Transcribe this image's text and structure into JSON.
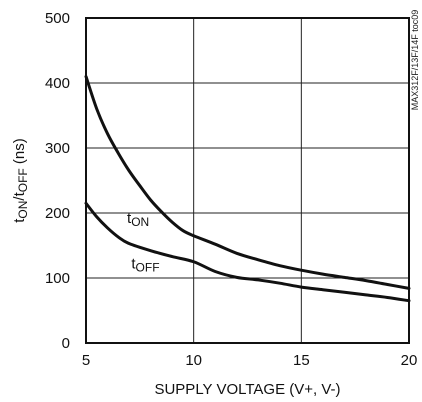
{
  "chart_data": {
    "type": "line",
    "xlabel": "SUPPLY VOLTAGE (V+, V-)",
    "ylabel": {
      "parts": [
        {
          "text": "t",
          "sub": false
        },
        {
          "text": "ON",
          "sub": true
        },
        {
          "text": "/t",
          "sub": false
        },
        {
          "text": "OFF",
          "sub": true
        },
        {
          "text": " (ns)",
          "sub": false
        }
      ]
    },
    "xlim": [
      5,
      20
    ],
    "ylim": [
      0,
      500
    ],
    "xticks": [
      5,
      10,
      15,
      20
    ],
    "yticks": [
      0,
      100,
      200,
      300,
      400,
      500
    ],
    "grid": true,
    "side_label": "MAX312F/13F/14F toc09",
    "series": [
      {
        "name": "tON",
        "label_parts": [
          {
            "text": "t",
            "sub": false
          },
          {
            "text": "ON",
            "sub": true
          }
        ],
        "x": [
          5,
          5.5,
          6,
          6.5,
          7,
          7.5,
          8,
          8.5,
          9,
          9.5,
          10,
          11,
          12,
          13,
          14,
          15,
          16,
          17,
          18,
          19,
          20
        ],
        "y": [
          410,
          360,
          322,
          292,
          265,
          242,
          220,
          202,
          186,
          173,
          165,
          152,
          138,
          128,
          119,
          112,
          106,
          101,
          96,
          90,
          84
        ]
      },
      {
        "name": "tOFF",
        "label_parts": [
          {
            "text": "t",
            "sub": false
          },
          {
            "text": "OFF",
            "sub": true
          }
        ],
        "x": [
          5,
          5.5,
          6,
          6.5,
          7,
          8,
          9,
          10,
          11,
          12,
          13,
          14,
          15,
          16,
          17,
          18,
          19,
          20
        ],
        "y": [
          215,
          194,
          177,
          163,
          153,
          142,
          133,
          125,
          110,
          101,
          97,
          92,
          86,
          82,
          78,
          74,
          70,
          65
        ]
      }
    ]
  },
  "colors": {
    "line": "#111111",
    "grid": "#222222",
    "background": "#ffffff"
  }
}
